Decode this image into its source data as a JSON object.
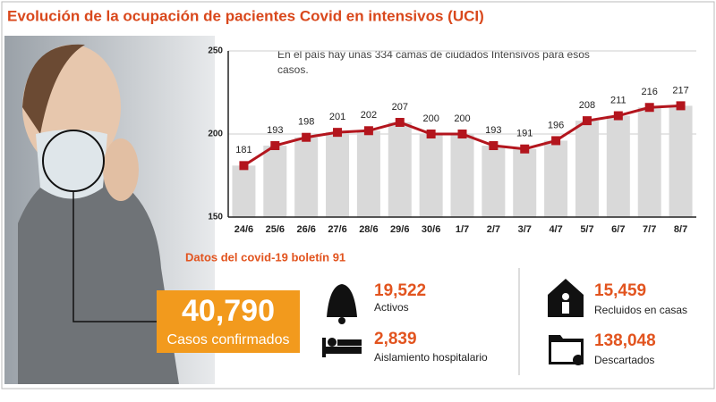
{
  "chart_data": {
    "type": "line",
    "title": "Evolución de la ocupación de pacientes Covid en intensivos (UCI)",
    "annotation": "En el país hay unas 334 camas de ciudados Intensivos para esos casos.",
    "categories": [
      "24/6",
      "25/6",
      "26/6",
      "27/6",
      "28/6",
      "29/6",
      "30/6",
      "1/7",
      "2/7",
      "3/7",
      "4/7",
      "5/7",
      "6/7",
      "7/7",
      "8/7"
    ],
    "values": [
      181,
      193,
      198,
      201,
      202,
      207,
      200,
      200,
      193,
      191,
      196,
      208,
      211,
      216,
      217
    ],
    "color": "#b3151d",
    "bar_color": "#d9d9d9",
    "bars_behind": true,
    "ylim": [
      150,
      250
    ],
    "yticks": [
      150,
      200,
      250
    ],
    "grid": true
  },
  "stats": {
    "heading": "Datos del covid-19 boletín 91",
    "confirmed": {
      "value": "40,790",
      "label": "Casos confirmados"
    },
    "items": [
      {
        "value": "19,522",
        "label": "Activos"
      },
      {
        "value": "2,839",
        "label": "Aislamiento hospitalario"
      },
      {
        "value": "15,459",
        "label": "Recluidos en casas"
      },
      {
        "value": "138,048",
        "label": "Descartados"
      }
    ]
  }
}
